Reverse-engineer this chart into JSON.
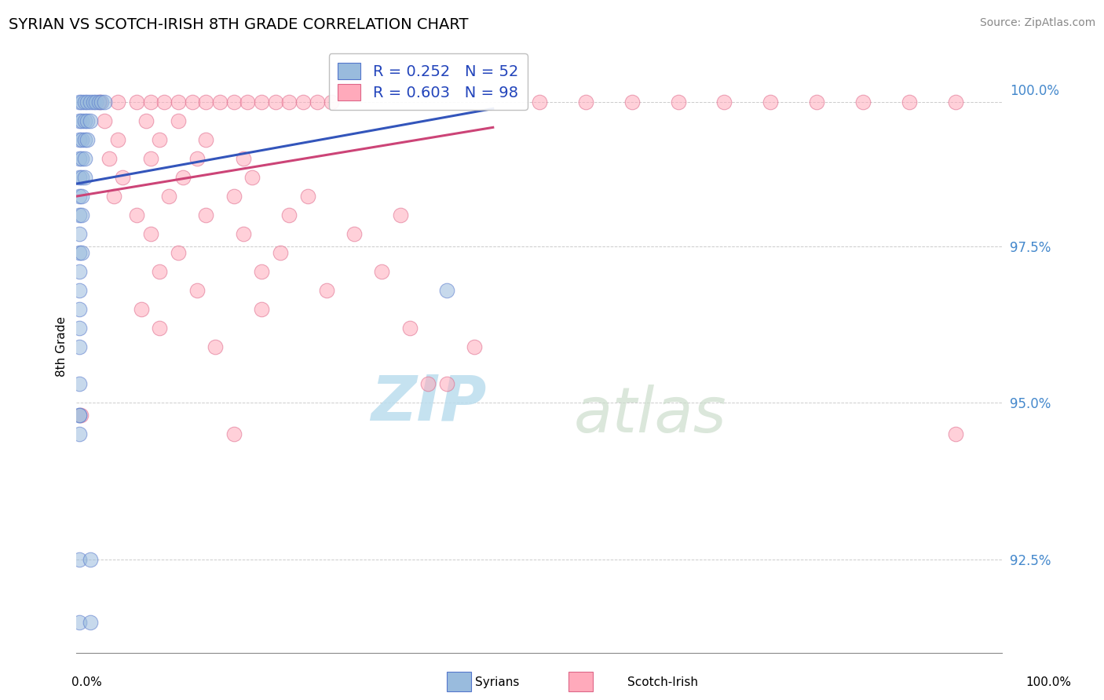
{
  "title": "SYRIAN VS SCOTCH-IRISH 8TH GRADE CORRELATION CHART",
  "source": "Source: ZipAtlas.com",
  "ylabel": "8th Grade",
  "ylim": [
    91.0,
    100.8
  ],
  "xlim": [
    0.0,
    100.0
  ],
  "yticks": [
    92.5,
    95.0,
    97.5,
    100.0
  ],
  "ytick_labels": [
    "92.5%",
    "95.0%",
    "97.5%",
    "100.0%"
  ],
  "r_syrian": 0.252,
  "n_syrian": 52,
  "r_scotch": 0.603,
  "n_scotch": 98,
  "color_syrian_fill": "#99BBDD",
  "color_syrian_edge": "#5577CC",
  "color_scotch_fill": "#FFAABB",
  "color_scotch_edge": "#DD6688",
  "color_line_syrian": "#3355BB",
  "color_line_scotch": "#CC4477",
  "watermark_zip_color": "#BBDDEE",
  "watermark_atlas_color": "#CCDDCC",
  "trend_syrian": [
    0.0,
    98.5,
    45.0,
    99.7
  ],
  "trend_scotch": [
    0.0,
    98.3,
    45.0,
    99.4
  ],
  "syrian_points": [
    [
      0.3,
      99.8
    ],
    [
      0.6,
      99.8
    ],
    [
      0.9,
      99.8
    ],
    [
      1.2,
      99.8
    ],
    [
      1.5,
      99.8
    ],
    [
      1.8,
      99.8
    ],
    [
      2.1,
      99.8
    ],
    [
      2.4,
      99.8
    ],
    [
      2.7,
      99.8
    ],
    [
      3.0,
      99.8
    ],
    [
      0.3,
      99.5
    ],
    [
      0.6,
      99.5
    ],
    [
      0.9,
      99.5
    ],
    [
      1.2,
      99.5
    ],
    [
      1.5,
      99.5
    ],
    [
      0.3,
      99.2
    ],
    [
      0.6,
      99.2
    ],
    [
      0.9,
      99.2
    ],
    [
      1.2,
      99.2
    ],
    [
      0.3,
      98.9
    ],
    [
      0.6,
      98.9
    ],
    [
      0.9,
      98.9
    ],
    [
      0.3,
      98.6
    ],
    [
      0.6,
      98.6
    ],
    [
      0.9,
      98.6
    ],
    [
      0.3,
      98.3
    ],
    [
      0.6,
      98.3
    ],
    [
      0.3,
      98.0
    ],
    [
      0.6,
      98.0
    ],
    [
      0.3,
      97.7
    ],
    [
      0.3,
      97.4
    ],
    [
      0.6,
      97.4
    ],
    [
      0.3,
      97.1
    ],
    [
      0.3,
      96.8
    ],
    [
      0.3,
      96.5
    ],
    [
      0.3,
      96.2
    ],
    [
      0.3,
      95.9
    ],
    [
      0.3,
      95.3
    ],
    [
      0.3,
      94.8
    ],
    [
      0.3,
      94.5
    ],
    [
      40.0,
      96.8
    ],
    [
      0.3,
      94.8
    ],
    [
      0.3,
      92.5
    ],
    [
      1.5,
      92.5
    ],
    [
      0.3,
      91.5
    ],
    [
      1.5,
      91.5
    ]
  ],
  "scotch_points": [
    [
      2.5,
      99.8
    ],
    [
      4.5,
      99.8
    ],
    [
      6.5,
      99.8
    ],
    [
      8.0,
      99.8
    ],
    [
      9.5,
      99.8
    ],
    [
      11.0,
      99.8
    ],
    [
      12.5,
      99.8
    ],
    [
      14.0,
      99.8
    ],
    [
      15.5,
      99.8
    ],
    [
      17.0,
      99.8
    ],
    [
      18.5,
      99.8
    ],
    [
      20.0,
      99.8
    ],
    [
      21.5,
      99.8
    ],
    [
      23.0,
      99.8
    ],
    [
      24.5,
      99.8
    ],
    [
      26.0,
      99.8
    ],
    [
      27.5,
      99.8
    ],
    [
      50.0,
      99.8
    ],
    [
      55.0,
      99.8
    ],
    [
      60.0,
      99.8
    ],
    [
      65.0,
      99.8
    ],
    [
      70.0,
      99.8
    ],
    [
      75.0,
      99.8
    ],
    [
      80.0,
      99.8
    ],
    [
      85.0,
      99.8
    ],
    [
      90.0,
      99.8
    ],
    [
      95.0,
      99.8
    ],
    [
      3.0,
      99.5
    ],
    [
      7.5,
      99.5
    ],
    [
      11.0,
      99.5
    ],
    [
      4.5,
      99.2
    ],
    [
      9.0,
      99.2
    ],
    [
      14.0,
      99.2
    ],
    [
      3.5,
      98.9
    ],
    [
      8.0,
      98.9
    ],
    [
      13.0,
      98.9
    ],
    [
      18.0,
      98.9
    ],
    [
      5.0,
      98.6
    ],
    [
      11.5,
      98.6
    ],
    [
      19.0,
      98.6
    ],
    [
      4.0,
      98.3
    ],
    [
      10.0,
      98.3
    ],
    [
      17.0,
      98.3
    ],
    [
      25.0,
      98.3
    ],
    [
      6.5,
      98.0
    ],
    [
      14.0,
      98.0
    ],
    [
      23.0,
      98.0
    ],
    [
      35.0,
      98.0
    ],
    [
      8.0,
      97.7
    ],
    [
      18.0,
      97.7
    ],
    [
      30.0,
      97.7
    ],
    [
      11.0,
      97.4
    ],
    [
      22.0,
      97.4
    ],
    [
      9.0,
      97.1
    ],
    [
      20.0,
      97.1
    ],
    [
      33.0,
      97.1
    ],
    [
      13.0,
      96.8
    ],
    [
      27.0,
      96.8
    ],
    [
      7.0,
      96.5
    ],
    [
      20.0,
      96.5
    ],
    [
      9.0,
      96.2
    ],
    [
      36.0,
      96.2
    ],
    [
      15.0,
      95.9
    ],
    [
      43.0,
      95.9
    ],
    [
      40.0,
      95.3
    ],
    [
      38.0,
      95.3
    ],
    [
      0.5,
      94.8
    ],
    [
      17.0,
      94.5
    ],
    [
      95.0,
      94.5
    ]
  ]
}
